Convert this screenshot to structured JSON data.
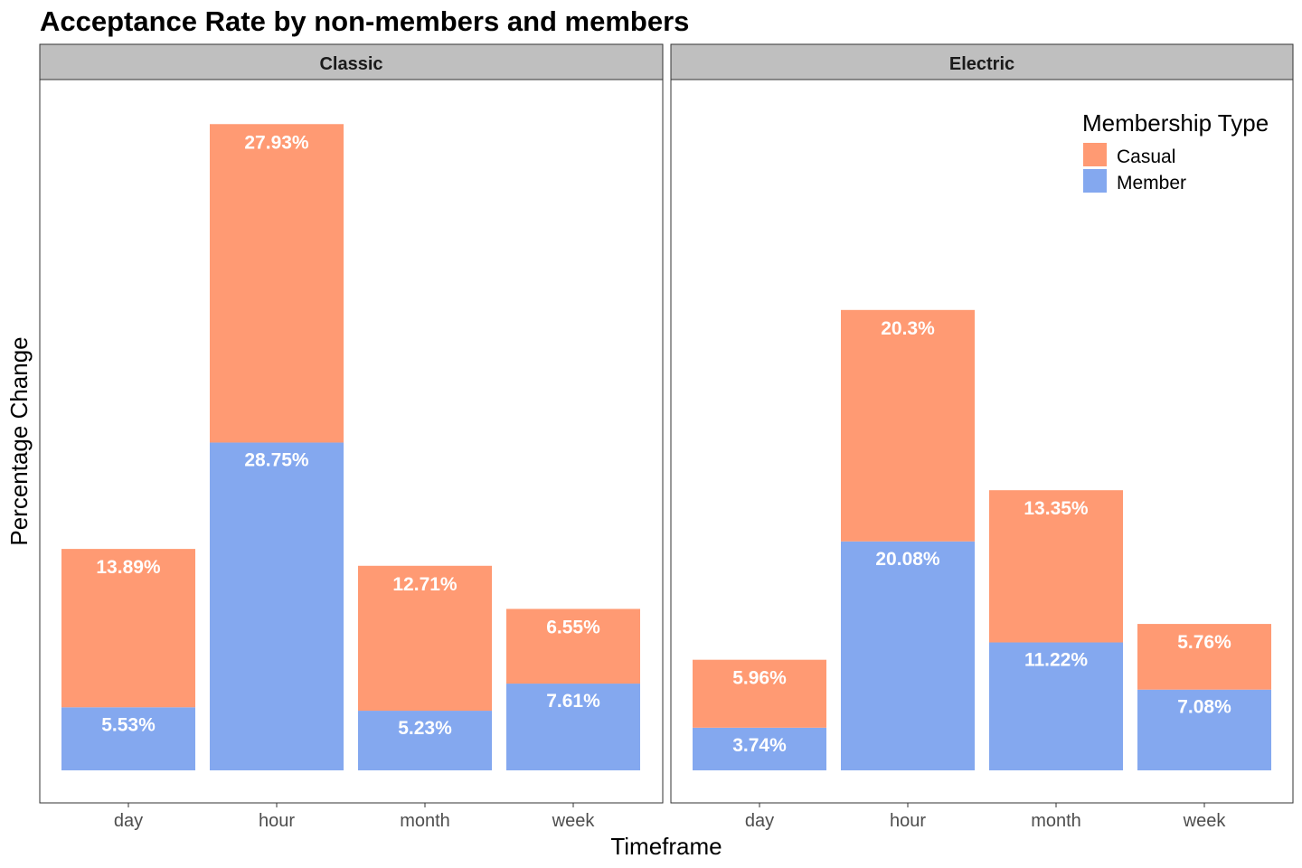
{
  "chart_data": {
    "type": "bar",
    "stacked": true,
    "title": "Acceptance Rate by non-members and members",
    "xlabel": "Timeframe",
    "ylabel": "Percentage Change",
    "y_tick_labels_shown": false,
    "grid": false,
    "legend": {
      "title": "Membership Type",
      "placement": "top-right",
      "entries": [
        "Casual",
        "Member"
      ]
    },
    "colors": {
      "Casual": "#FF9A73",
      "Member": "#84A8EF"
    },
    "categories": [
      "day",
      "hour",
      "month",
      "week"
    ],
    "facets": [
      {
        "name": "Classic",
        "series": [
          {
            "name": "Member",
            "values": [
              5.53,
              28.75,
              5.23,
              7.61
            ],
            "labels": [
              "5.53%",
              "28.75%",
              "5.23%",
              "7.61%"
            ]
          },
          {
            "name": "Casual",
            "values": [
              13.89,
              27.93,
              12.71,
              6.55
            ],
            "labels": [
              "13.89%",
              "27.93%",
              "12.71%",
              "6.55%"
            ]
          }
        ]
      },
      {
        "name": "Electric",
        "series": [
          {
            "name": "Member",
            "values": [
              3.74,
              20.08,
              11.22,
              7.08
            ],
            "labels": [
              "3.74%",
              "20.08%",
              "11.22%",
              "7.08%"
            ]
          },
          {
            "name": "Casual",
            "values": [
              5.96,
              20.3,
              13.35,
              5.76
            ],
            "labels": [
              "5.96%",
              "20.3%",
              "13.35%",
              "5.76%"
            ]
          }
        ]
      }
    ]
  }
}
